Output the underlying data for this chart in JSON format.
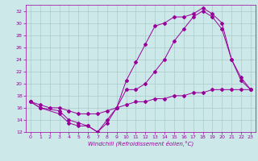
{
  "xlabel": "Windchill (Refroidissement éolien,°C)",
  "xlim": [
    -0.5,
    23.5
  ],
  "ylim": [
    12,
    33
  ],
  "yticks": [
    12,
    14,
    16,
    18,
    20,
    22,
    24,
    26,
    28,
    30,
    32
  ],
  "xticks": [
    0,
    1,
    2,
    3,
    4,
    5,
    6,
    7,
    8,
    9,
    10,
    11,
    12,
    13,
    14,
    15,
    16,
    17,
    18,
    19,
    20,
    21,
    22,
    23
  ],
  "bg_color": "#cce8e8",
  "line_color": "#990099",
  "grid_color": "#aacccc",
  "curve1_x": [
    0,
    1,
    3,
    4,
    5,
    6,
    7,
    8,
    9,
    10,
    11,
    12,
    13,
    14,
    15,
    16,
    17,
    18,
    19,
    20,
    21,
    22,
    23
  ],
  "curve1_y": [
    17,
    16,
    15,
    13.5,
    13,
    13,
    12,
    14,
    16,
    20.5,
    23.5,
    26.5,
    29.5,
    30,
    31,
    31,
    31.5,
    32.5,
    31.5,
    30,
    24,
    21,
    19
  ],
  "curve2_x": [
    0,
    1,
    3,
    4,
    5,
    6,
    7,
    8,
    9,
    10,
    11,
    12,
    13,
    14,
    15,
    16,
    17,
    18,
    19,
    20,
    21,
    22,
    23
  ],
  "curve2_y": [
    17,
    16,
    15.5,
    14,
    13.5,
    13,
    12,
    13.5,
    16,
    19,
    19,
    20,
    22,
    24,
    27,
    29,
    31,
    32,
    31,
    29,
    24,
    20.5,
    19
  ],
  "curve3_x": [
    0,
    1,
    2,
    3,
    4,
    5,
    6,
    7,
    8,
    9,
    10,
    11,
    12,
    13,
    14,
    15,
    16,
    17,
    18,
    19,
    20,
    21,
    22,
    23
  ],
  "curve3_y": [
    17,
    16.5,
    16,
    16,
    15.5,
    15,
    15,
    15,
    15.5,
    16,
    16.5,
    17,
    17,
    17.5,
    17.5,
    18,
    18,
    18.5,
    18.5,
    19,
    19,
    19,
    19,
    19
  ]
}
